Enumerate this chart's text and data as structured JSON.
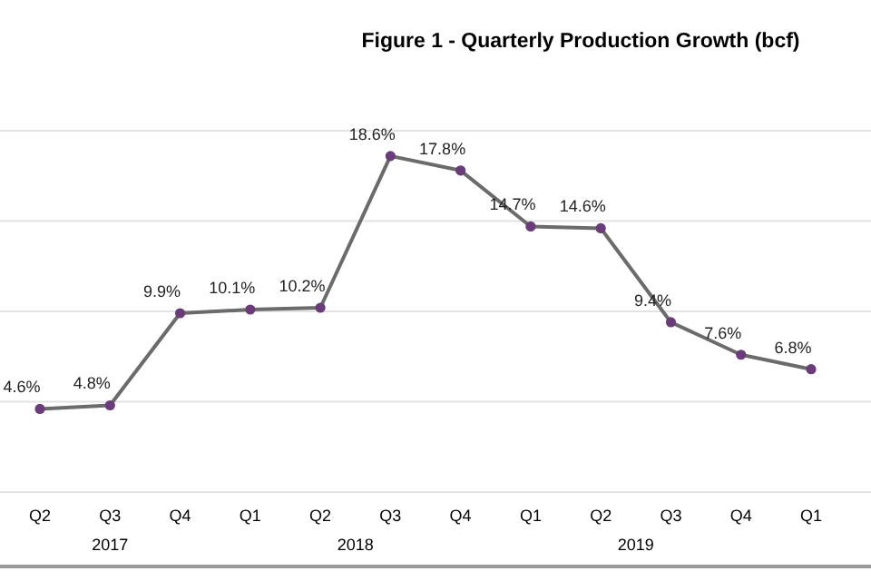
{
  "chart_data": {
    "type": "line",
    "title": "Figure 1 - Quarterly Production Growth (bcf)",
    "categories": [
      "Q2",
      "Q3",
      "Q4",
      "Q1",
      "Q2",
      "Q3",
      "Q4",
      "Q1",
      "Q2",
      "Q3",
      "Q4",
      "Q1"
    ],
    "series": [
      {
        "color": "#6b6b6b",
        "values": [
          4.6,
          4.8,
          9.9,
          10.1,
          10.2,
          18.6,
          17.8,
          14.7,
          14.6,
          9.4,
          7.6,
          6.8
        ],
        "value_labels": [
          "4.6%",
          "4.8%",
          "9.9%",
          "10.1%",
          "10.2%",
          "18.6%",
          "17.8%",
          "14.7%",
          "14.6%",
          "9.4%",
          "7.6%",
          "6.8%"
        ]
      }
    ],
    "colors": [
      "#6a3d7a",
      "#6a3d7a",
      "#6a3d7a",
      "#6a3d7a",
      "#6a3d7a",
      "#6a3d7a",
      "#6a3d7a",
      "#6a3d7a",
      "#6a3d7a",
      "#6a3d7a",
      "#6a3d7a",
      "#6a3d7a"
    ],
    "ylim": [
      0,
      20
    ],
    "yticks": [
      {
        "value": 0,
        "label": null
      },
      {
        "value": 5,
        "label": null
      },
      {
        "value": 10,
        "label": null
      },
      {
        "value": 15,
        "label": null
      },
      {
        "value": 20,
        "label": null
      }
    ],
    "tick_labels": "x",
    "grid": "y",
    "marker": "circle",
    "line_style": "solid",
    "annotations": [
      "2017",
      "2018",
      "2019"
    ]
  }
}
